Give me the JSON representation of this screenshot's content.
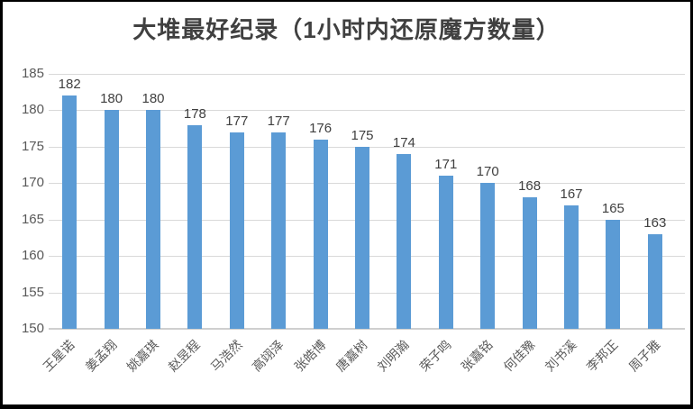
{
  "chart_data": {
    "type": "bar",
    "title": "大堆最好纪录（1小时内还原魔方数量）",
    "categories": [
      "王星诺",
      "姜孟翔",
      "姚嘉琪",
      "赵昱程",
      "马浩然",
      "高翊泽",
      "张皓博",
      "唐嘉树",
      "刘明瀚",
      "荣子鸣",
      "张嘉铭",
      "何佳豫",
      "刘书溪",
      "李邦正",
      "周子雅"
    ],
    "values": [
      182,
      180,
      180,
      178,
      177,
      177,
      176,
      175,
      174,
      171,
      170,
      168,
      167,
      165,
      163
    ],
    "value_labels": [
      "182",
      "180",
      "180",
      "178",
      "177",
      "177",
      "176",
      "175",
      "174",
      "171",
      "170",
      "168",
      "167",
      "165",
      "163"
    ],
    "xlabel": "",
    "ylabel": "",
    "ylim": [
      150,
      185
    ],
    "yticks": [
      150,
      155,
      160,
      165,
      170,
      175,
      180,
      185
    ],
    "grid": true,
    "legend": false,
    "bar_color": "#5b9bd5",
    "gridline_color": "#d9d9d9",
    "axis_text_color": "#595959",
    "value_text_color": "#404040",
    "title_color": "#404040"
  }
}
